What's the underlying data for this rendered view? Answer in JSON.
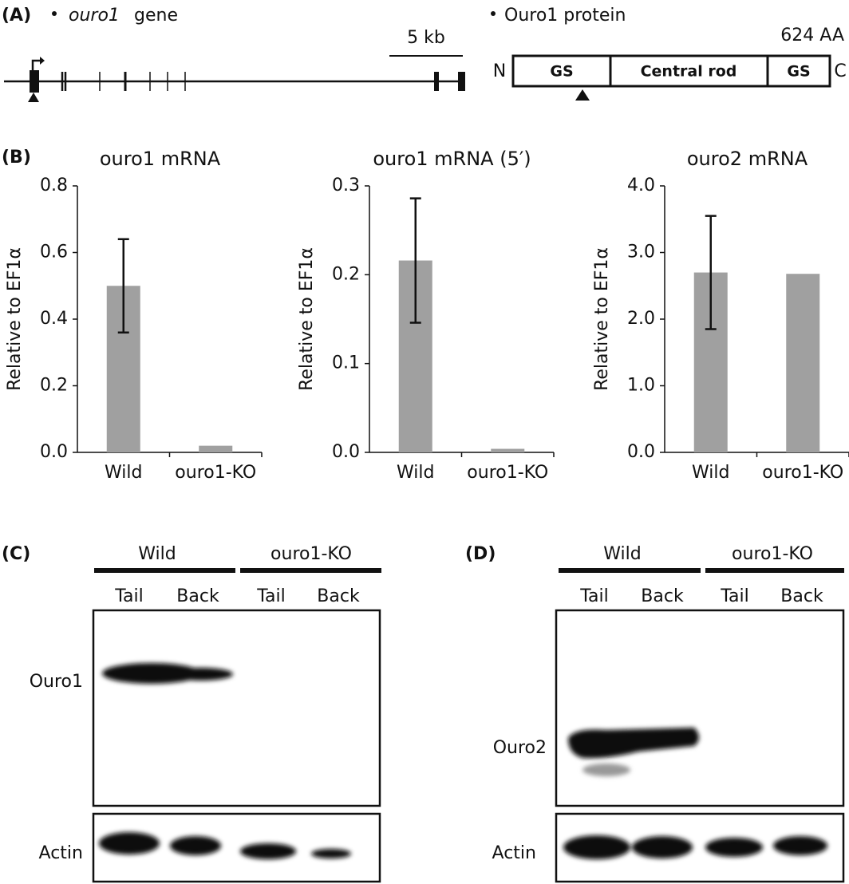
{
  "panel_a": {
    "label": "(A)",
    "gene_name": "ouro1",
    "gene_word": "gene",
    "scale_label": "5 kb",
    "protein_title": "Ouro1 protein",
    "length": "624 AA",
    "n_term": "N",
    "c_term": "C",
    "domains": [
      "GS",
      "Central rod",
      "GS"
    ]
  },
  "panel_b_label": "(B)",
  "chart_data": [
    {
      "type": "bar",
      "title": "ouro1 mRNA",
      "y_label": "Relative to EF1α",
      "categories": [
        "Wild",
        "ouro1-KO"
      ],
      "values": [
        0.5,
        0.02
      ],
      "errors": [
        0.14,
        null
      ],
      "color": "#a0a0a0",
      "ylim": [
        0,
        0.8
      ],
      "yticks": [
        {
          "value": 0,
          "label": "0.0"
        },
        0.2,
        0.4,
        0.6,
        0.8
      ]
    },
    {
      "type": "bar",
      "title": "ouro1 mRNA (5′)",
      "y_label": "Relative to EF1α",
      "categories": [
        "Wild",
        "ouro1-KO"
      ],
      "values": [
        0.216,
        0.004
      ],
      "errors": [
        0.07,
        null
      ],
      "color": "#a0a0a0",
      "ylim": [
        0,
        0.3
      ],
      "yticks": [
        {
          "value": 0,
          "label": "0.0"
        },
        0.1,
        0.2,
        0.3
      ]
    },
    {
      "type": "bar",
      "title": "ouro2 mRNA",
      "y_label": "Relative to EF1α",
      "categories": [
        "Wild",
        "ouro1-KO"
      ],
      "values": [
        2.7,
        2.68
      ],
      "errors": [
        0.85,
        null
      ],
      "color": "#a0a0a0",
      "ylim": [
        0,
        4
      ],
      "yticks": [
        {
          "value": 0,
          "label": "0.0"
        },
        {
          "value": 1,
          "label": "1.0"
        },
        {
          "value": 2,
          "label": "2.0"
        },
        {
          "value": 3,
          "label": "3.0"
        },
        {
          "value": 4,
          "label": "4.0"
        }
      ]
    }
  ],
  "panel_c": {
    "label": "(C)",
    "groups": [
      "Wild",
      "ouro1-KO"
    ],
    "lanes": [
      "Tail",
      "Back",
      "Tail",
      "Back"
    ],
    "blots": [
      "Ouro1",
      "Actin"
    ]
  },
  "panel_d": {
    "label": "(D)",
    "groups": [
      "Wild",
      "ouro1-KO"
    ],
    "lanes": [
      "Tail",
      "Back",
      "Tail",
      "Back"
    ],
    "blots": [
      "Ouro2",
      "Actin"
    ]
  }
}
